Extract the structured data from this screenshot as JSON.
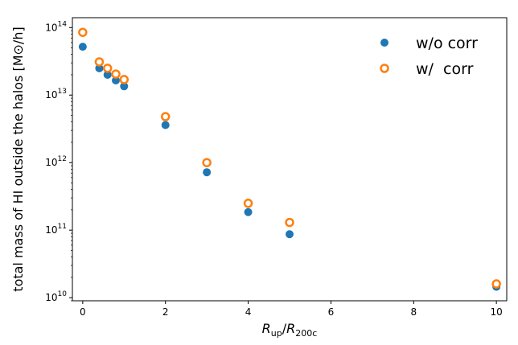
{
  "chart_data": {
    "type": "scatter",
    "title": "",
    "xlabel": {
      "main": "R",
      "main_sub": "up",
      "sep": "/",
      "den": "R",
      "den_sub": "200c"
    },
    "ylabel": "total mass of HI outside the halos [M⊙/h]",
    "xlim": [
      -0.25,
      10.25
    ],
    "ylim": [
      9000000000.0,
      140000000000000.0
    ],
    "yscale": "log",
    "grid": false,
    "legend_placement": "upper-right",
    "x_ticks": [
      0,
      2,
      4,
      6,
      8,
      10
    ],
    "y_ticks": [
      {
        "value": 10000000000.0,
        "base": "10",
        "exp": "10"
      },
      {
        "value": 100000000000.0,
        "base": "10",
        "exp": "11"
      },
      {
        "value": 1000000000000.0,
        "base": "10",
        "exp": "12"
      },
      {
        "value": 10000000000000.0,
        "base": "10",
        "exp": "13"
      },
      {
        "value": 100000000000000.0,
        "base": "10",
        "exp": "14"
      }
    ],
    "x": [
      0,
      0.4,
      0.6,
      0.8,
      1,
      2,
      3,
      4,
      5,
      10
    ],
    "series": [
      {
        "name": "w/o corr",
        "marker": "filled-circle",
        "color": "#1f77b4",
        "values": [
          52000000000000.0,
          25000000000000.0,
          20000000000000.0,
          16500000000000.0,
          13500000000000.0,
          3600000000000.0,
          720000000000.0,
          185000000000.0,
          87000000000.0,
          14500000000.0
        ]
      },
      {
        "name": "w/  corr",
        "marker": "open-circle",
        "color": "#ff7f0e",
        "values": [
          85000000000000.0,
          31000000000000.0,
          25000000000000.0,
          20500000000000.0,
          17000000000000.0,
          4800000000000.0,
          1000000000000.0,
          250000000000.0,
          130000000000.0,
          16000000000.0
        ]
      }
    ]
  }
}
